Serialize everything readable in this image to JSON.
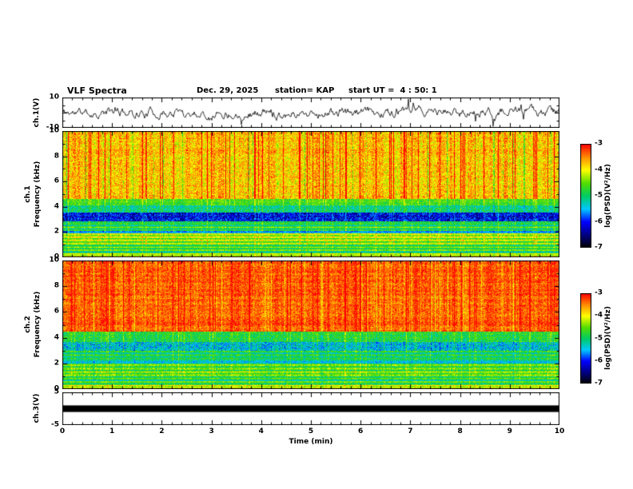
{
  "header": {
    "title": "VLF Spectra",
    "date": "Dec. 29, 2025",
    "station": "station= KAP",
    "start_ut": "start UT =  4 : 50: 1"
  },
  "panels": {
    "ch1_wave": {
      "ylabel": "ch.1(V)",
      "yticks": [
        "10",
        "-10"
      ]
    },
    "ch1_spec": {
      "channel": "ch.1",
      "axis": "Frequency (kHz)",
      "yticks": [
        "10",
        "8",
        "6",
        "4",
        "2",
        "0"
      ]
    },
    "ch2_spec": {
      "channel": "ch.2",
      "axis": "Frequency (kHz)",
      "yticks": [
        "10",
        "8",
        "6",
        "4",
        "2",
        "0"
      ]
    },
    "ch3_wave": {
      "ylabel": "ch.3(V)",
      "yticks": [
        "5",
        "-5"
      ]
    }
  },
  "xaxis": {
    "label": "Time (min)",
    "ticks": [
      "0",
      "1",
      "2",
      "3",
      "4",
      "5",
      "6",
      "7",
      "8",
      "9",
      "10"
    ]
  },
  "colorbar": {
    "label": "log(PSD)(V²/Hz)",
    "ticks": [
      "-3",
      "-4",
      "-5",
      "-6",
      "-7"
    ],
    "colors_top_to_bottom": [
      "#ff0000",
      "#ff8c00",
      "#ffff00",
      "#55dd00",
      "#00cc66",
      "#00c8ff",
      "#0000ff",
      "#000080",
      "#000000"
    ]
  },
  "chart_data": [
    {
      "type": "line",
      "name": "ch1_waveform",
      "title": "ch.1(V) time series",
      "xlabel": "Time (min)",
      "ylabel": "ch.1(V)",
      "xlim": [
        0,
        10
      ],
      "ylim": [
        -10,
        10
      ],
      "line_color": "#000000",
      "description": "continuous broadband noise waveform, mean 0 V, typical excursions ±5 V with brief spikes toward ±9 V",
      "seed": 11,
      "smooth": 0.8,
      "step": 4.2,
      "spike_prob": 0.025,
      "spike_gain": 1.9
    },
    {
      "type": "heatmap",
      "name": "ch1_spectrogram",
      "title": "ch.1 VLF spectrogram",
      "xlabel": "Time (min)",
      "ylabel": "Frequency (kHz)",
      "xlim": [
        0,
        10
      ],
      "ylim": [
        0,
        10
      ],
      "zlabel": "log(PSD)(V²/Hz)",
      "zlim": [
        -7,
        -3
      ],
      "seed": 23,
      "bands": [
        {
          "lo": 0.0,
          "hi": 0.35,
          "base": -4.1,
          "noise": 0.25,
          "stripe": 0.2,
          "hlines": 0.6
        },
        {
          "lo": 0.35,
          "hi": 1.0,
          "base": -4.7,
          "noise": 0.3,
          "stripe": 0.2,
          "hlines": 0.9
        },
        {
          "lo": 1.0,
          "hi": 1.95,
          "base": -4.4,
          "noise": 0.35,
          "stripe": 0.3,
          "hlines": 0.7
        },
        {
          "lo": 1.95,
          "hi": 2.15,
          "base": -5.6,
          "noise": 0.3,
          "stripe": 0.2,
          "hlines": 0
        },
        {
          "lo": 2.15,
          "hi": 2.9,
          "base": -4.8,
          "noise": 0.35,
          "stripe": 0.3,
          "hlines": 0.5
        },
        {
          "lo": 2.9,
          "hi": 3.6,
          "base": -6.1,
          "noise": 0.55,
          "stripe": 0.3,
          "hlines": 0
        },
        {
          "lo": 3.6,
          "hi": 4.15,
          "base": -5.1,
          "noise": 0.45,
          "stripe": 0.35,
          "hlines": 0
        },
        {
          "lo": 4.15,
          "hi": 4.65,
          "base": -4.6,
          "noise": 0.35,
          "stripe": 0.4,
          "hlines": 0
        },
        {
          "lo": 4.65,
          "hi": 10.01,
          "base": -3.75,
          "noise": 0.45,
          "stripe": 0.85,
          "hlines": 0
        }
      ]
    },
    {
      "type": "heatmap",
      "name": "ch2_spectrogram",
      "title": "ch.2 VLF spectrogram",
      "xlabel": "Time (min)",
      "ylabel": "Frequency (kHz)",
      "xlim": [
        0,
        10
      ],
      "ylim": [
        0,
        10
      ],
      "zlabel": "log(PSD)(V²/Hz)",
      "zlim": [
        -7,
        -3
      ],
      "seed": 57,
      "bands": [
        {
          "lo": 0.0,
          "hi": 0.35,
          "base": -4.2,
          "noise": 0.25,
          "stripe": 0.2,
          "hlines": 0.6
        },
        {
          "lo": 0.35,
          "hi": 1.05,
          "base": -4.7,
          "noise": 0.3,
          "stripe": 0.2,
          "hlines": 0.9
        },
        {
          "lo": 1.05,
          "hi": 2.0,
          "base": -4.5,
          "noise": 0.35,
          "stripe": 0.3,
          "hlines": 0.7
        },
        {
          "lo": 2.0,
          "hi": 2.2,
          "base": -5.4,
          "noise": 0.3,
          "stripe": 0.2,
          "hlines": 0
        },
        {
          "lo": 2.2,
          "hi": 3.0,
          "base": -4.8,
          "noise": 0.35,
          "stripe": 0.3,
          "hlines": 0.4
        },
        {
          "lo": 3.0,
          "hi": 3.7,
          "base": -5.4,
          "noise": 0.5,
          "stripe": 0.35,
          "hlines": 0
        },
        {
          "lo": 3.7,
          "hi": 4.5,
          "base": -4.8,
          "noise": 0.4,
          "stripe": 0.4,
          "hlines": 0
        },
        {
          "lo": 4.5,
          "hi": 10.01,
          "base": -3.35,
          "noise": 0.35,
          "stripe": 0.6,
          "hlines": 0
        }
      ]
    },
    {
      "type": "line",
      "name": "ch3_waveform",
      "title": "ch.3(V) time series",
      "xlabel": "Time (min)",
      "ylabel": "ch.3(V)",
      "xlim": [
        0,
        10
      ],
      "ylim": [
        -5,
        5
      ],
      "line_color": "#000000",
      "description": "flat saturated trace at 0 V rendered as a solid thick black band spanning the full time range",
      "band_halfwidth_v": 1.0
    }
  ]
}
